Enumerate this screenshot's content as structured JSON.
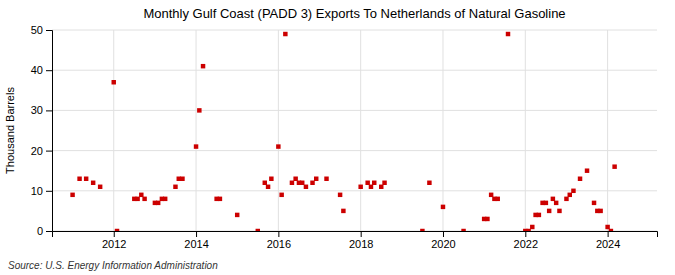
{
  "chart_data": {
    "type": "scatter",
    "title": "Monthly Gulf Coast (PADD 3) Exports To Netherlands of Natural Gasoline",
    "ylabel": "Thousand Barrels",
    "source": "Source: U.S. Energy Information Administration",
    "color": "#cc0000",
    "marker": "square",
    "grid": true,
    "xlim": [
      2010.5,
      2025.2
    ],
    "xticks": [
      2012,
      2014,
      2016,
      2018,
      2020,
      2022,
      2024
    ],
    "ylim": [
      0,
      50
    ],
    "yticks": [
      0,
      10,
      20,
      30,
      40,
      50
    ],
    "x": [
      2011.0,
      2011.17,
      2011.33,
      2011.5,
      2011.67,
      2012.0,
      2012.08,
      2012.5,
      2012.58,
      2012.67,
      2012.75,
      2013.0,
      2013.08,
      2013.17,
      2013.25,
      2013.5,
      2013.58,
      2013.67,
      2014.0,
      2014.08,
      2014.17,
      2014.5,
      2014.58,
      2015.0,
      2015.5,
      2015.67,
      2015.75,
      2015.83,
      2016.0,
      2016.08,
      2016.17,
      2016.33,
      2016.42,
      2016.5,
      2016.58,
      2016.67,
      2016.83,
      2016.92,
      2017.17,
      2017.5,
      2017.58,
      2018.0,
      2018.17,
      2018.25,
      2018.33,
      2018.5,
      2018.58,
      2019.5,
      2019.67,
      2020.0,
      2020.5,
      2021.0,
      2021.08,
      2021.17,
      2021.25,
      2021.33,
      2021.58,
      2022.0,
      2022.08,
      2022.17,
      2022.25,
      2022.33,
      2022.42,
      2022.5,
      2022.58,
      2022.67,
      2022.75,
      2022.83,
      2023.0,
      2023.08,
      2023.17,
      2023.33,
      2023.5,
      2023.67,
      2023.75,
      2023.83,
      2024.0,
      2024.08,
      2024.17
    ],
    "values": [
      9,
      13,
      13,
      12,
      11,
      37,
      0,
      8,
      8,
      9,
      8,
      7,
      7,
      8,
      8,
      11,
      13,
      13,
      21,
      30,
      41,
      8,
      8,
      4,
      0,
      12,
      11,
      13,
      21,
      9,
      49,
      12,
      13,
      12,
      12,
      11,
      12,
      13,
      13,
      9,
      5,
      11,
      12,
      11,
      12,
      11,
      12,
      0,
      12,
      6,
      0,
      3,
      3,
      9,
      8,
      8,
      49,
      0,
      0,
      1,
      4,
      4,
      7,
      7,
      5,
      8,
      7,
      5,
      8,
      9,
      10,
      13,
      15,
      7,
      5,
      5,
      1,
      0,
      16
    ]
  }
}
